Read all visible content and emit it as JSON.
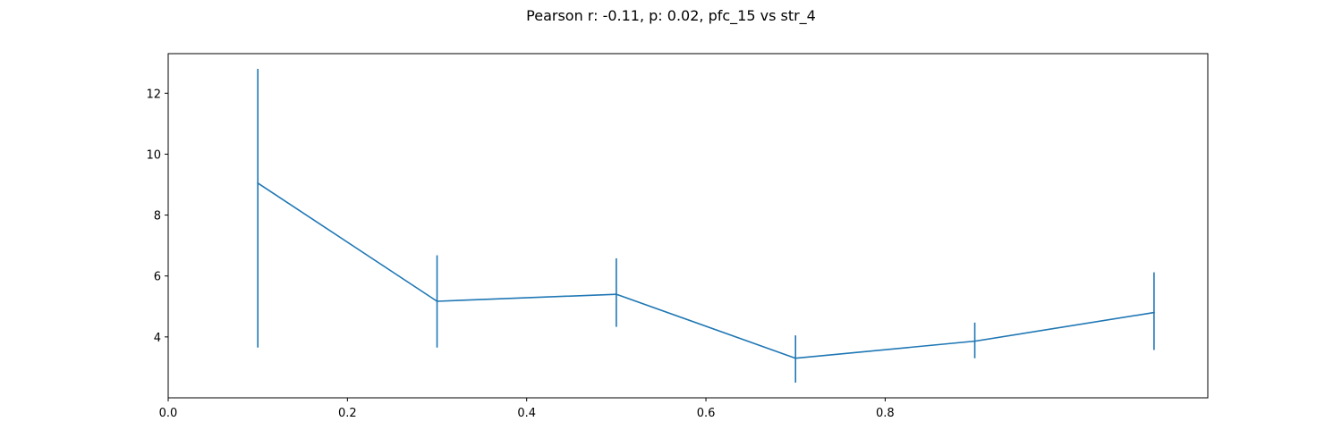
{
  "chart_data": {
    "type": "line",
    "title": "Pearson r: -0.11, p: 0.02, pfc_15 vs str_4",
    "xlabel": "",
    "ylabel": "",
    "xlim": [
      0.0,
      1.16
    ],
    "ylim": [
      2.0,
      13.3
    ],
    "x_ticks": [
      0.0,
      0.2,
      0.4,
      0.6,
      0.8
    ],
    "x_tick_labels": [
      "0.0",
      "0.2",
      "0.4",
      "0.6",
      "0.8"
    ],
    "y_ticks": [
      4,
      6,
      8,
      10,
      12
    ],
    "y_tick_labels": [
      "4",
      "6",
      "8",
      "10",
      "12"
    ],
    "grid": false,
    "series": [
      {
        "color": "#1f77b4",
        "x": [
          0.1,
          0.3,
          0.5,
          0.7,
          0.9,
          1.1
        ],
        "y": [
          9.05,
          5.17,
          5.4,
          3.3,
          3.86,
          4.8
        ],
        "yerr_low": [
          3.65,
          3.65,
          4.33,
          2.5,
          3.3,
          3.57
        ],
        "yerr_high": [
          12.8,
          6.68,
          6.58,
          4.05,
          4.47,
          6.12
        ]
      }
    ]
  }
}
